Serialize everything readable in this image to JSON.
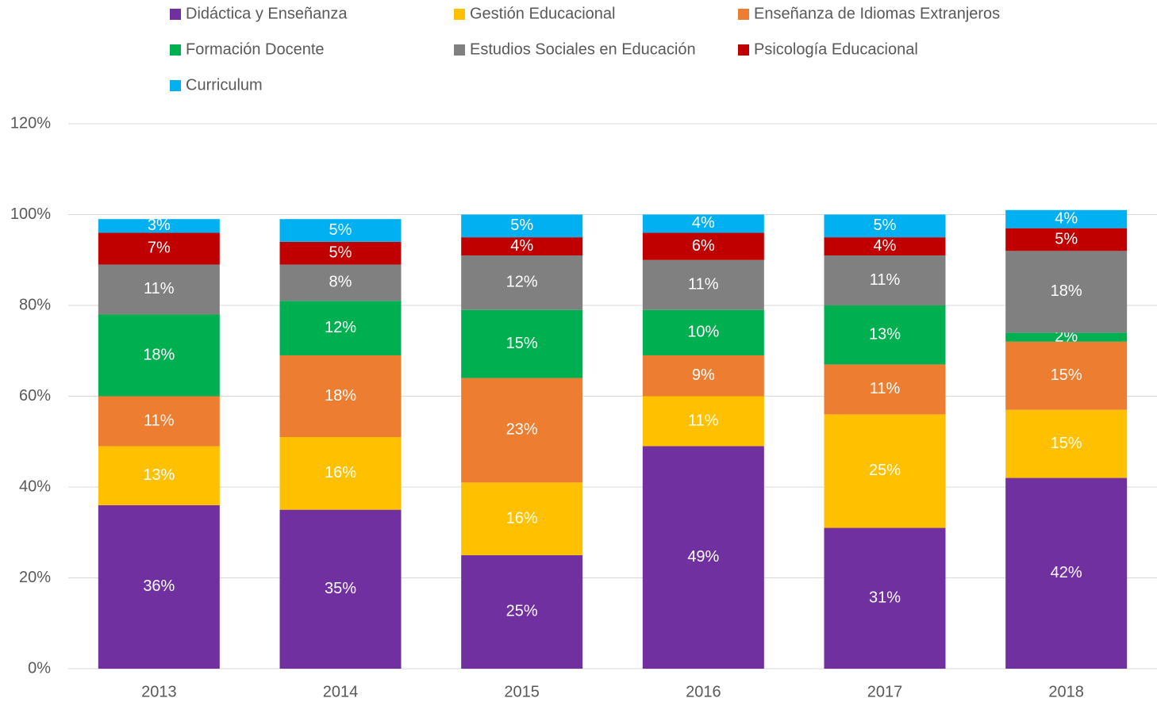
{
  "chart_data": {
    "type": "stacked_bar",
    "categories": [
      "2013",
      "2014",
      "2015",
      "2016",
      "2017",
      "2018"
    ],
    "series": [
      {
        "name": "Didáctica y Enseñanza",
        "color": "#7030a0",
        "values": [
          36,
          35,
          25,
          49,
          31,
          42
        ],
        "value_labels": [
          "36%",
          "35%",
          "25%",
          "49%",
          "31%",
          "42%"
        ]
      },
      {
        "name": "Gestión Educacional",
        "color": "#ffc000",
        "values": [
          13,
          16,
          16,
          11,
          25,
          15
        ],
        "value_labels": [
          "13%",
          "16%",
          "16%",
          "11%",
          "25%",
          "15%"
        ]
      },
      {
        "name": "Enseñanza de Idiomas Extranjeros",
        "color": "#ed7d31",
        "values": [
          11,
          18,
          23,
          9,
          11,
          15
        ],
        "value_labels": [
          "11%",
          "18%",
          "23%",
          "9%",
          "11%",
          "15%"
        ]
      },
      {
        "name": "Formación Docente",
        "color": "#00b050",
        "values": [
          18,
          12,
          15,
          10,
          13,
          2
        ],
        "value_labels": [
          "18%",
          "12%",
          "15%",
          "10%",
          "13%",
          "2%"
        ]
      },
      {
        "name": "Estudios Sociales en Educación",
        "color": "#808080",
        "values": [
          11,
          8,
          12,
          11,
          11,
          18
        ],
        "value_labels": [
          "11%",
          "8%",
          "12%",
          "11%",
          "11%",
          "18%"
        ]
      },
      {
        "name": "Psicología Educacional",
        "color": "#c00000",
        "values": [
          7,
          5,
          4,
          6,
          4,
          5
        ],
        "value_labels": [
          "7%",
          "5%",
          "4%",
          "6%",
          "4%",
          "5%"
        ]
      },
      {
        "name": "Curriculum",
        "color": "#00b0f0",
        "values": [
          3,
          5,
          5,
          4,
          5,
          4
        ],
        "value_labels": [
          "3%",
          "5%",
          "5%",
          "4%",
          "5%",
          "4%"
        ]
      }
    ],
    "ylim": [
      0,
      120
    ],
    "yticks": [
      {
        "value": 0,
        "label": "0%"
      },
      {
        "value": 20,
        "label": "20%"
      },
      {
        "value": 40,
        "label": "40%"
      },
      {
        "value": 60,
        "label": "60%"
      },
      {
        "value": 80,
        "label": "80%"
      },
      {
        "value": 100,
        "label": "100%"
      },
      {
        "value": 120,
        "label": "120%"
      }
    ],
    "grid": true,
    "legend": "top"
  }
}
